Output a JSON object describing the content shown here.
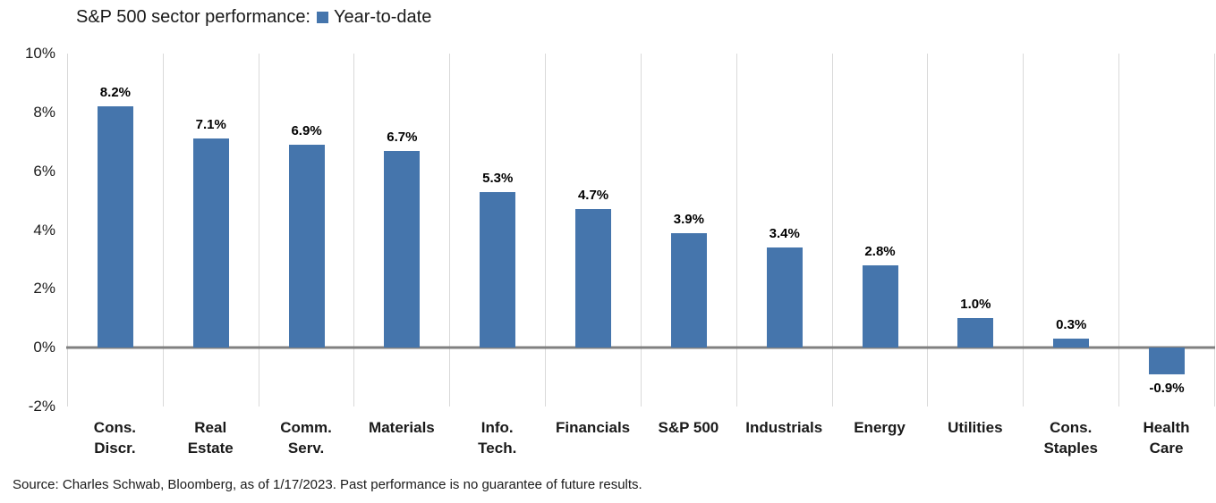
{
  "title": "S&P 500 sector performance:",
  "legend": {
    "label": "Year-to-date",
    "color": "#4575ac"
  },
  "source": "Source: Charles Schwab, Bloomberg, as of 1/17/2023.  Past performance is no guarantee of future results.",
  "chart_data": {
    "type": "bar",
    "title": "S&P 500 sector performance:",
    "legend": [
      "Year-to-date"
    ],
    "legend_position": "top",
    "categories": [
      "Cons.\nDiscr.",
      "Real\nEstate",
      "Comm.\nServ.",
      "Materials",
      "Info.\nTech.",
      "Financials",
      "S&P 500",
      "Industrials",
      "Energy",
      "Utilities",
      "Cons.\nStaples",
      "Health\nCare"
    ],
    "values": [
      8.2,
      7.1,
      6.9,
      6.7,
      5.3,
      4.7,
      3.9,
      3.4,
      2.8,
      1.0,
      0.3,
      -0.9
    ],
    "value_labels": [
      "8.2%",
      "7.1%",
      "6.9%",
      "6.7%",
      "5.3%",
      "4.7%",
      "3.9%",
      "3.4%",
      "2.8%",
      "1.0%",
      "0.3%",
      "-0.9%"
    ],
    "xlabel": "",
    "ylabel": "",
    "ylim": [
      -2,
      10
    ],
    "yticks": [
      10,
      8,
      6,
      4,
      2,
      0,
      -2
    ],
    "ytick_labels": [
      "10%",
      "8%",
      "6%",
      "4%",
      "2%",
      "0%",
      "-2%"
    ],
    "bar_color": "#4575ac",
    "grid": "vertical-only",
    "gridline_color": "#d9d9d9",
    "zero_line_color": "#808080"
  }
}
